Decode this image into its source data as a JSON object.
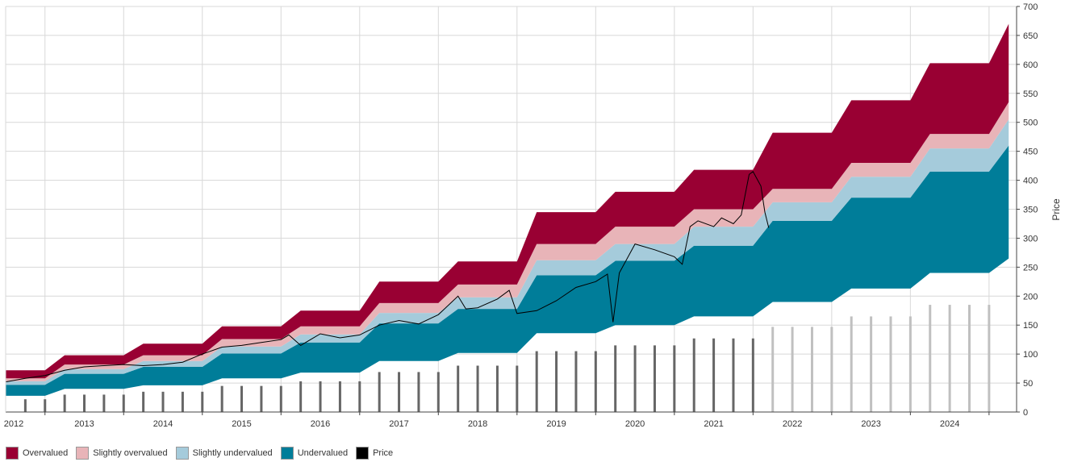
{
  "chart_data": {
    "type": "area",
    "ylabel": "Price",
    "ylim": [
      0,
      700
    ],
    "yticks": [
      0,
      50,
      100,
      150,
      200,
      250,
      300,
      350,
      400,
      450,
      500,
      550,
      600,
      650,
      700
    ],
    "xlim": [
      2012.0,
      2024.85
    ],
    "xticks": [
      "2012",
      "2013",
      "2014",
      "2015",
      "2016",
      "2017",
      "2018",
      "2019",
      "2020",
      "2021",
      "2022",
      "2023",
      "2024"
    ],
    "grid": true,
    "legend_position": "bottom-left",
    "legend": [
      {
        "label": "Overvalued",
        "color": "#990033"
      },
      {
        "label": "Slightly overvalued",
        "color": "#e8b4b8"
      },
      {
        "label": "Slightly undervalued",
        "color": "#a5cbdb"
      },
      {
        "label": "Undervalued",
        "color": "#007d99"
      },
      {
        "label": "Price",
        "color": "#000000"
      }
    ],
    "valuation_bands": {
      "x": [
        2012.0,
        2012.5,
        2012.75,
        2013.5,
        2013.75,
        2014.5,
        2014.75,
        2015.5,
        2015.75,
        2016.5,
        2016.75,
        2017.5,
        2017.75,
        2018.5,
        2018.75,
        2019.5,
        2019.75,
        2020.5,
        2020.75,
        2021.5,
        2021.75,
        2022.5,
        2022.75,
        2023.5,
        2023.75,
        2024.5,
        2024.75
      ],
      "series": [
        {
          "name": "Undervalued",
          "lower": [
            28,
            28,
            40,
            40,
            46,
            46,
            58,
            58,
            68,
            68,
            88,
            88,
            102,
            102,
            136,
            136,
            150,
            150,
            165,
            165,
            190,
            190,
            213,
            213,
            240,
            240,
            265
          ],
          "upper": [
            47,
            47,
            66,
            66,
            78,
            78,
            101,
            101,
            120,
            120,
            153,
            153,
            178,
            178,
            236,
            236,
            261,
            261,
            287,
            287,
            330,
            330,
            370,
            370,
            415,
            415,
            460
          ]
        },
        {
          "name": "Slightly undervalued",
          "lower": [
            47,
            47,
            66,
            66,
            78,
            78,
            101,
            101,
            120,
            120,
            153,
            153,
            178,
            178,
            236,
            236,
            261,
            261,
            287,
            287,
            330,
            330,
            370,
            370,
            415,
            415,
            460
          ],
          "upper": [
            53,
            53,
            74,
            74,
            88,
            88,
            113,
            113,
            134,
            134,
            171,
            171,
            198,
            198,
            262,
            262,
            290,
            290,
            320,
            320,
            362,
            362,
            406,
            406,
            455,
            455,
            505
          ]
        },
        {
          "name": "Slightly overvalued",
          "lower": [
            53,
            53,
            74,
            74,
            88,
            88,
            113,
            113,
            134,
            134,
            171,
            171,
            198,
            198,
            262,
            262,
            290,
            290,
            320,
            320,
            362,
            362,
            406,
            406,
            455,
            455,
            505
          ],
          "upper": [
            58,
            58,
            82,
            82,
            98,
            98,
            126,
            126,
            148,
            148,
            188,
            188,
            220,
            220,
            290,
            290,
            320,
            320,
            350,
            350,
            385,
            385,
            430,
            430,
            480,
            480,
            535
          ]
        },
        {
          "name": "Overvalued",
          "lower": [
            58,
            58,
            82,
            82,
            98,
            98,
            126,
            126,
            148,
            148,
            188,
            188,
            220,
            220,
            290,
            290,
            320,
            320,
            350,
            350,
            385,
            385,
            430,
            430,
            480,
            480,
            535
          ],
          "upper": [
            72,
            72,
            98,
            98,
            118,
            118,
            148,
            148,
            175,
            175,
            225,
            225,
            260,
            260,
            345,
            345,
            380,
            380,
            418,
            418,
            482,
            482,
            538,
            538,
            602,
            602,
            670
          ]
        }
      ]
    },
    "price": {
      "name": "Price",
      "x": [
        2012.0,
        2012.25,
        2012.5,
        2012.75,
        2013.0,
        2013.25,
        2013.5,
        2013.75,
        2014.0,
        2014.25,
        2014.5,
        2014.75,
        2015.0,
        2015.25,
        2015.5,
        2015.6,
        2015.75,
        2016.0,
        2016.25,
        2016.5,
        2016.75,
        2017.0,
        2017.25,
        2017.5,
        2017.75,
        2017.85,
        2018.0,
        2018.25,
        2018.4,
        2018.5,
        2018.75,
        2019.0,
        2019.25,
        2019.5,
        2019.65,
        2019.72,
        2019.8,
        2020.0,
        2020.25,
        2020.5,
        2020.6,
        2020.7,
        2020.8,
        2021.0,
        2021.1,
        2021.25,
        2021.35,
        2021.45,
        2021.5,
        2021.6,
        2021.65,
        2021.7
      ],
      "values": [
        52,
        58,
        63,
        72,
        78,
        80,
        82,
        80,
        82,
        86,
        100,
        112,
        115,
        120,
        125,
        133,
        115,
        135,
        128,
        133,
        150,
        158,
        152,
        168,
        200,
        178,
        180,
        195,
        210,
        170,
        175,
        192,
        215,
        225,
        238,
        155,
        240,
        290,
        280,
        268,
        255,
        320,
        330,
        320,
        335,
        325,
        340,
        410,
        415,
        390,
        345,
        318
      ]
    },
    "eps_bars": {
      "x": [
        2012.25,
        2012.5,
        2012.75,
        2013.0,
        2013.25,
        2013.5,
        2013.75,
        2014.0,
        2014.25,
        2014.5,
        2014.75,
        2015.0,
        2015.25,
        2015.5,
        2015.75,
        2016.0,
        2016.25,
        2016.5,
        2016.75,
        2017.0,
        2017.25,
        2017.5,
        2017.75,
        2018.0,
        2018.25,
        2018.5,
        2018.75,
        2019.0,
        2019.25,
        2019.5,
        2019.75,
        2020.0,
        2020.25,
        2020.5,
        2020.75,
        2021.0,
        2021.25,
        2021.5,
        2021.75,
        2022.0,
        2022.25,
        2022.5,
        2022.75,
        2023.0,
        2023.25,
        2023.5,
        2023.75,
        2024.0,
        2024.25,
        2024.5
      ],
      "values": [
        22,
        22,
        30,
        30,
        30,
        30,
        35,
        35,
        35,
        35,
        45,
        45,
        45,
        45,
        53,
        53,
        53,
        53,
        69,
        69,
        69,
        69,
        80,
        80,
        80,
        80,
        105,
        105,
        105,
        105,
        115,
        115,
        115,
        115,
        127,
        127,
        127,
        127,
        147,
        147,
        147,
        147,
        165,
        165,
        165,
        165,
        185,
        185,
        185,
        185
      ],
      "estimate_from_index": 38,
      "actual_color": "#666666",
      "estimate_color": "#c0c0c0"
    }
  }
}
